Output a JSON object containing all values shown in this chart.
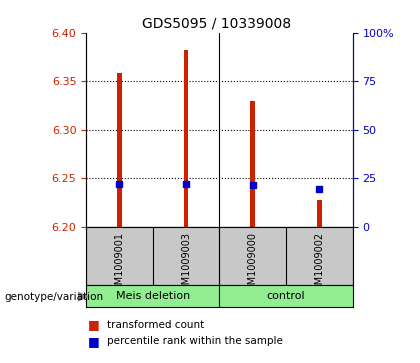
{
  "title": "GDS5095 / 10339008",
  "samples": [
    "GSM1009001",
    "GSM1009003",
    "GSM1009000",
    "GSM1009002"
  ],
  "red_values": [
    6.358,
    6.382,
    6.33,
    6.228
  ],
  "blue_values": [
    6.244,
    6.244,
    6.243,
    6.239
  ],
  "y_min": 6.2,
  "y_max": 6.4,
  "y_ticks": [
    6.2,
    6.25,
    6.3,
    6.35,
    6.4
  ],
  "right_ticks": [
    0,
    25,
    50,
    75,
    100
  ],
  "right_tick_labels": [
    "0",
    "25",
    "50",
    "75",
    "100%"
  ],
  "group_labels": [
    "Meis deletion",
    "control"
  ],
  "group_color": "#90EE90",
  "left_axis_color": "#CC2200",
  "right_axis_color": "#0000CC",
  "bar_color": "#CC2200",
  "blue_marker_color": "#0000CC",
  "plot_bg_color": "#FFFFFF",
  "label_area_bg": "#C8C8C8",
  "legend_red_label": "transformed count",
  "legend_blue_label": "percentile rank within the sample",
  "genotype_label": "genotype/variation",
  "bar_width": 0.07
}
